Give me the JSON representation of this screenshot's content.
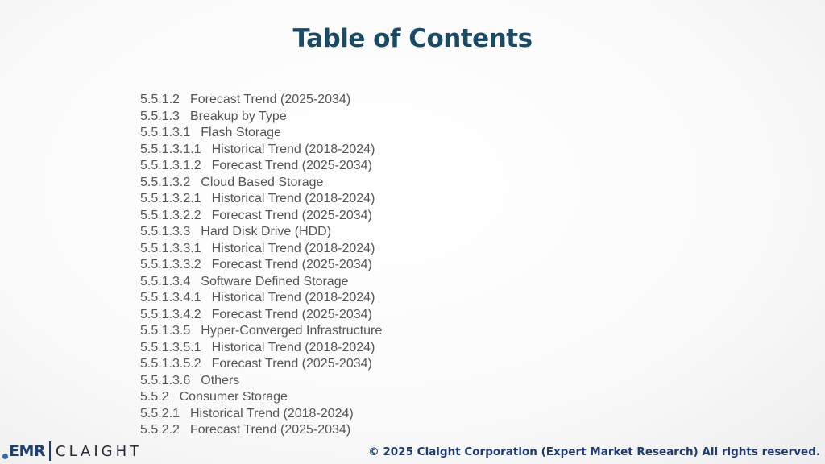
{
  "title": "Table of Contents",
  "toc": [
    {
      "num": "5.5.1.2",
      "text": "Forecast Trend (2025-2034)"
    },
    {
      "num": "5.5.1.3",
      "text": "Breakup by Type"
    },
    {
      "num": "5.5.1.3.1",
      "text": "Flash Storage"
    },
    {
      "num": "5.5.1.3.1.1",
      "text": "Historical Trend (2018-2024)"
    },
    {
      "num": "5.5.1.3.1.2",
      "text": "Forecast Trend (2025-2034)"
    },
    {
      "num": "5.5.1.3.2",
      "text": "Cloud Based Storage"
    },
    {
      "num": "5.5.1.3.2.1",
      "text": "Historical Trend (2018-2024)"
    },
    {
      "num": "5.5.1.3.2.2",
      "text": "Forecast Trend (2025-2034)"
    },
    {
      "num": "5.5.1.3.3",
      "text": "Hard Disk Drive (HDD)"
    },
    {
      "num": "5.5.1.3.3.1",
      "text": "Historical Trend (2018-2024)"
    },
    {
      "num": "5.5.1.3.3.2",
      "text": "Forecast Trend (2025-2034)"
    },
    {
      "num": "5.5.1.3.4",
      "text": "Software Defined Storage"
    },
    {
      "num": "5.5.1.3.4.1",
      "text": "Historical Trend (2018-2024)"
    },
    {
      "num": "5.5.1.3.4.2",
      "text": "Forecast Trend (2025-2034)"
    },
    {
      "num": "5.5.1.3.5",
      "text": "Hyper-Converged Infrastructure"
    },
    {
      "num": "5.5.1.3.5.1",
      "text": "Historical Trend (2018-2024)"
    },
    {
      "num": "5.5.1.3.5.2",
      "text": "Forecast Trend (2025-2034)"
    },
    {
      "num": "5.5.1.3.6",
      "text": "Others"
    },
    {
      "num": "5.5.2",
      "text": "Consumer Storage"
    },
    {
      "num": "5.5.2.1",
      "text": "Historical Trend (2018-2024)"
    },
    {
      "num": "5.5.2.2",
      "text": "Forecast Trend (2025-2034)"
    }
  ],
  "footer": {
    "logo_left": "EMR",
    "logo_right": "CLAIGHT",
    "copyright": "© 2025 Claight Corporation (Expert Market Research) All rights reserved."
  },
  "colors": {
    "title": "#1b4a66",
    "body_text": "#555555",
    "brand": "#1e3f73"
  }
}
